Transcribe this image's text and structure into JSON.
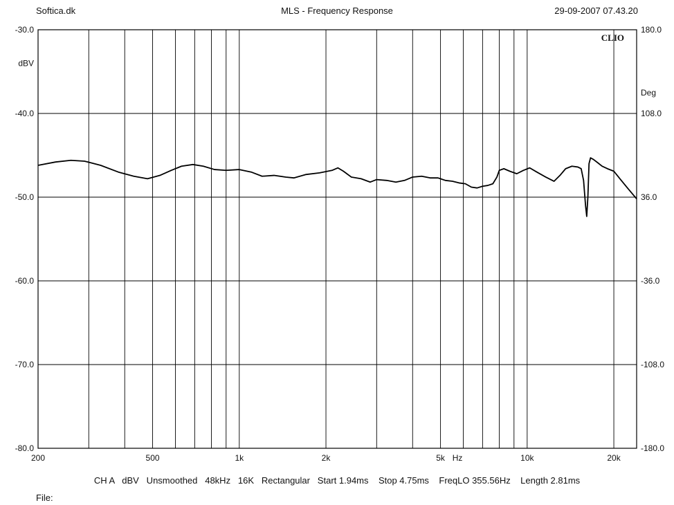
{
  "header": {
    "left": "Softica.dk",
    "center": "MLS - Frequency Response",
    "right": "29-09-2007 07.43.20"
  },
  "footer": {
    "settings": "CH A   dBV   Unsmoothed   48kHz   16K   Rectangular   Start 1.94ms    Stop 4.75ms    FreqLO 355.56Hz    Length 2.81ms",
    "file_label": "File:"
  },
  "chart_data": {
    "type": "line",
    "brand": "CLIO",
    "xscale": "log",
    "xlim": [
      200,
      24000
    ],
    "ylim": [
      -80,
      -30
    ],
    "y2lim": [
      -180,
      180
    ],
    "grid": true,
    "ylabel": "dBV",
    "y2label": "Deg",
    "xunit": "Hz",
    "x_gridlines": [
      300,
      400,
      500,
      600,
      700,
      800,
      900,
      1000,
      2000,
      3000,
      4000,
      5000,
      6000,
      7000,
      8000,
      9000,
      10000,
      20000
    ],
    "x_ticks": [
      {
        "value": 200,
        "label": "200"
      },
      {
        "value": 500,
        "label": "500"
      },
      {
        "value": 1000,
        "label": "1k"
      },
      {
        "value": 2000,
        "label": "2k"
      },
      {
        "value": 5000,
        "label": "5k"
      },
      {
        "value": 10000,
        "label": "10k"
      },
      {
        "value": 20000,
        "label": "20k"
      }
    ],
    "y_ticks": [
      {
        "value": -30,
        "label": "-30.0"
      },
      {
        "value": -40,
        "label": "-40.0"
      },
      {
        "value": -50,
        "label": "-50.0"
      },
      {
        "value": -60,
        "label": "-60.0"
      },
      {
        "value": -70,
        "label": "-70.0"
      },
      {
        "value": -80,
        "label": "-80.0"
      }
    ],
    "y2_ticks": [
      {
        "value": 180,
        "label": "180.0"
      },
      {
        "value": 108,
        "label": "108.0"
      },
      {
        "value": 36,
        "label": "36.0"
      },
      {
        "value": -36,
        "label": "-36.0"
      },
      {
        "value": -108,
        "label": "-108.0"
      },
      {
        "value": -180,
        "label": "-180.0"
      }
    ],
    "series": [
      {
        "color": "#000000",
        "points": [
          [
            200,
            -46.2
          ],
          [
            230,
            -45.8
          ],
          [
            260,
            -45.6
          ],
          [
            290,
            -45.7
          ],
          [
            330,
            -46.2
          ],
          [
            380,
            -47.0
          ],
          [
            430,
            -47.5
          ],
          [
            480,
            -47.8
          ],
          [
            530,
            -47.4
          ],
          [
            580,
            -46.8
          ],
          [
            630,
            -46.3
          ],
          [
            690,
            -46.1
          ],
          [
            750,
            -46.3
          ],
          [
            820,
            -46.7
          ],
          [
            900,
            -46.8
          ],
          [
            1000,
            -46.7
          ],
          [
            1100,
            -47.0
          ],
          [
            1200,
            -47.5
          ],
          [
            1320,
            -47.4
          ],
          [
            1450,
            -47.6
          ],
          [
            1550,
            -47.7
          ],
          [
            1700,
            -47.3
          ],
          [
            1900,
            -47.1
          ],
          [
            2100,
            -46.8
          ],
          [
            2200,
            -46.5
          ],
          [
            2300,
            -46.9
          ],
          [
            2450,
            -47.6
          ],
          [
            2650,
            -47.8
          ],
          [
            2850,
            -48.2
          ],
          [
            3000,
            -47.9
          ],
          [
            3250,
            -48.0
          ],
          [
            3500,
            -48.2
          ],
          [
            3750,
            -48.0
          ],
          [
            4000,
            -47.6
          ],
          [
            4300,
            -47.5
          ],
          [
            4600,
            -47.7
          ],
          [
            4900,
            -47.7
          ],
          [
            5200,
            -48.0
          ],
          [
            5500,
            -48.1
          ],
          [
            5800,
            -48.3
          ],
          [
            6100,
            -48.4
          ],
          [
            6400,
            -48.8
          ],
          [
            6700,
            -48.9
          ],
          [
            7000,
            -48.7
          ],
          [
            7300,
            -48.6
          ],
          [
            7600,
            -48.4
          ],
          [
            7850,
            -47.6
          ],
          [
            8000,
            -46.8
          ],
          [
            8300,
            -46.6
          ],
          [
            8700,
            -46.9
          ],
          [
            9200,
            -47.2
          ],
          [
            9700,
            -46.8
          ],
          [
            10200,
            -46.5
          ],
          [
            10800,
            -47.0
          ],
          [
            11600,
            -47.6
          ],
          [
            12400,
            -48.1
          ],
          [
            13000,
            -47.4
          ],
          [
            13600,
            -46.6
          ],
          [
            14300,
            -46.3
          ],
          [
            15000,
            -46.4
          ],
          [
            15400,
            -46.6
          ],
          [
            15700,
            -48.0
          ],
          [
            15950,
            -51.0
          ],
          [
            16100,
            -52.3
          ],
          [
            16250,
            -50.0
          ],
          [
            16400,
            -46.0
          ],
          [
            16600,
            -45.3
          ],
          [
            17000,
            -45.5
          ],
          [
            17600,
            -45.9
          ],
          [
            18200,
            -46.3
          ],
          [
            19000,
            -46.6
          ],
          [
            20000,
            -46.9
          ],
          [
            21000,
            -47.8
          ],
          [
            22300,
            -48.9
          ],
          [
            24000,
            -50.2
          ]
        ]
      }
    ]
  }
}
